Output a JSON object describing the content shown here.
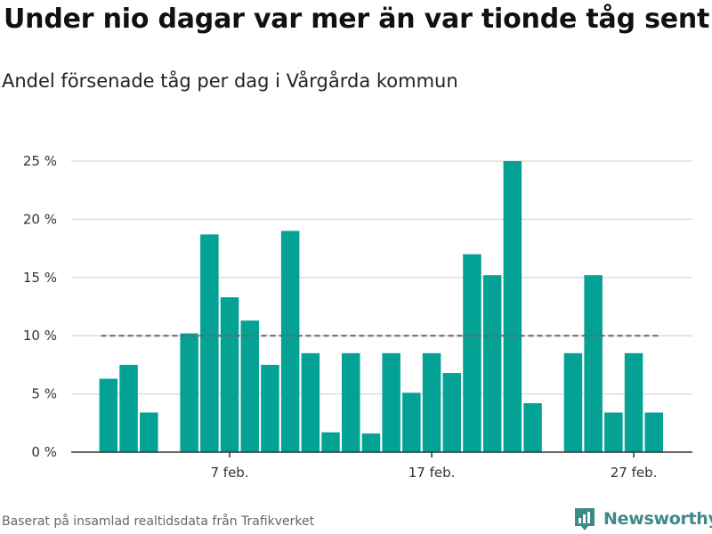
{
  "title": "Under nio dagar var mer än var tionde tåg sent",
  "subtitle": "Andel försenade tåg per dag i Vårgårda kommun",
  "footer": "Baserat på insamlad realtidsdata från Trafikverket",
  "brand": "Newsworthy",
  "colors": {
    "bar": "#04a294",
    "reference_line": "#666666",
    "grid": "#dddddd",
    "axis": "#333333",
    "brand": "#3d8a87"
  },
  "chart_data": {
    "type": "bar",
    "x": [
      1,
      2,
      3,
      4,
      5,
      6,
      7,
      8,
      9,
      10,
      11,
      12,
      13,
      14,
      15,
      16,
      17,
      18,
      19,
      20,
      21,
      22,
      23,
      24,
      25,
      26,
      27,
      28
    ],
    "values": [
      6.3,
      7.5,
      3.4,
      null,
      10.2,
      18.7,
      13.3,
      11.3,
      7.5,
      19.0,
      8.5,
      1.7,
      8.5,
      1.6,
      8.5,
      5.1,
      8.5,
      6.8,
      17.0,
      15.2,
      25.0,
      4.2,
      null,
      8.5,
      15.2,
      3.4,
      8.5,
      3.4
    ],
    "xticks": [
      {
        "x": 7,
        "label": "7 feb."
      },
      {
        "x": 17,
        "label": "17 feb."
      },
      {
        "x": 27,
        "label": "27 feb."
      }
    ],
    "yticks": [
      {
        "value": 0,
        "label": "0 %"
      },
      {
        "value": 5,
        "label": "5 %"
      },
      {
        "value": 10,
        "label": "10 %"
      },
      {
        "value": 15,
        "label": "15 %"
      },
      {
        "value": 20,
        "label": "20 %"
      },
      {
        "value": 25,
        "label": "25 %"
      }
    ],
    "ylim": [
      0,
      25
    ],
    "reference_line": 10,
    "grid": true
  }
}
